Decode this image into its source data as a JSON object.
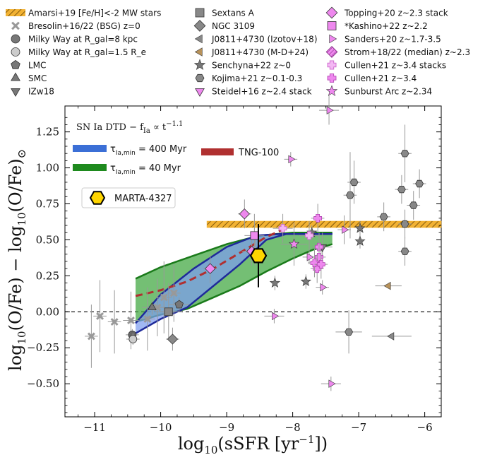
{
  "chart_data": {
    "type": "scatter",
    "xlabel": "log10(sSFR [yr^-1])",
    "ylabel": "log10(O/Fe) - log10(O/Fe)⊙",
    "xlim": [
      -11.45,
      -5.75
    ],
    "ylim": [
      -0.73,
      1.43
    ],
    "xticks": [
      -11,
      -10,
      -9,
      -8,
      -7,
      -6
    ],
    "yticks": [
      -0.5,
      -0.25,
      0.0,
      0.25,
      0.5,
      0.75,
      1.0,
      1.25
    ],
    "xtick_labels": [
      "−11",
      "−10",
      "−9",
      "−8",
      "−7",
      "−6"
    ],
    "ytick_labels": [
      "−0.50",
      "−0.25",
      "0.00",
      "0.25",
      "0.50",
      "0.75",
      "1.00",
      "1.25"
    ],
    "legend_placement": "above plot, three columns",
    "inset_title": "SN Ia DTD — f_Ia ∝ t^−1.1",
    "model_legend": [
      {
        "label": "τIa,min = 400 Myr",
        "color": "#3b6fd6"
      },
      {
        "label": "τIa,min = 40 Myr",
        "color": "#1e8a1e"
      },
      {
        "label": "TNG-100",
        "color": "#b03030"
      }
    ],
    "marta_label": "MARTA-4327",
    "legend": [
      {
        "label": "Amarsi+19 [Fe/H]<-2 MW stars",
        "marker": "hatch-band",
        "color": "#f2b233"
      },
      {
        "label": "Bresolin+16/22 (BSG) z=0",
        "marker": "x",
        "color": "#999999"
      },
      {
        "label": "Milky Way at R_gal=8 kpc",
        "marker": "circle",
        "color": "#777777"
      },
      {
        "label": "Milky Way at R_gal=1.5 R_e",
        "marker": "circle",
        "color": "#cccccc"
      },
      {
        "label": "LMC",
        "marker": "pentagon",
        "color": "#777777"
      },
      {
        "label": "SMC",
        "marker": "triangle-up",
        "color": "#777777"
      },
      {
        "label": "IZw18",
        "marker": "triangle-down",
        "color": "#777777"
      },
      {
        "label": "Sextans A",
        "marker": "square",
        "color": "#888888"
      },
      {
        "label": "NGC 3109",
        "marker": "diamond",
        "color": "#888888"
      },
      {
        "label": "J0811+4730 (Izotov+18)",
        "marker": "triangle-left",
        "color": "#888888"
      },
      {
        "label": "J0811+4730 (M-D+24)",
        "marker": "triangle-left",
        "color": "#b8925a"
      },
      {
        "label": "Senchyna+22 z~0",
        "marker": "star",
        "color": "#777777"
      },
      {
        "label": "Kojima+21 z~0.1-0.3",
        "marker": "hexagon",
        "color": "#888888"
      },
      {
        "label": "Steidel+16 z~2.4 stack",
        "marker": "triangle-down",
        "color": "#ee88ee"
      },
      {
        "label": "Topping+20 z~2.3 stack",
        "marker": "diamond",
        "color": "#ee88ee"
      },
      {
        "label": "*Kashino+22 z~2.2",
        "marker": "square",
        "color": "#ee88ee"
      },
      {
        "label": "Sanders+20 z~1.7-3.5",
        "marker": "triangle-right",
        "color": "#ee88ee"
      },
      {
        "label": "Strom+18/22 (median) z~2.3",
        "marker": "hatched-diamond",
        "color": "#ee88ee"
      },
      {
        "label": "Cullen+21 z~3.4 stacks",
        "marker": "plus-open",
        "color": "#f4b8f4"
      },
      {
        "label": "Cullen+21 z~3.4",
        "marker": "plus",
        "color": "#ee88ee"
      },
      {
        "label": "Sunburst Arc z~2.34",
        "marker": "star",
        "color": "#ee88ee"
      }
    ],
    "amarsi_band": {
      "x": [
        -9.3,
        -5.75
      ],
      "y": [
        0.585,
        0.63
      ]
    },
    "series": [
      {
        "name": "Bresolin+16/22 (BSG) z=0",
        "marker": "x",
        "color": "#999999",
        "points": [
          {
            "x": -11.05,
            "y": -0.17,
            "xerr": 0.1,
            "yerr": 0.22
          },
          {
            "x": -10.92,
            "y": -0.03,
            "xerr": 0.1,
            "yerr": 0.25
          },
          {
            "x": -10.7,
            "y": -0.07,
            "xerr": 0.1,
            "yerr": 0.22
          },
          {
            "x": -10.45,
            "y": -0.06,
            "xerr": 0.12,
            "yerr": 0.2
          },
          {
            "x": -10.2,
            "y": -0.05,
            "xerr": 0.12,
            "yerr": 0.22
          },
          {
            "x": -10.05,
            "y": 0.03,
            "xerr": 0.12,
            "yerr": 0.2
          },
          {
            "x": -9.95,
            "y": 0.1,
            "xerr": 0.12,
            "yerr": 0.25
          },
          {
            "x": -9.8,
            "y": 0.13,
            "xerr": 0.1,
            "yerr": 0.2
          }
        ]
      },
      {
        "name": "Milky Way at R_gal=8 kpc",
        "marker": "circle",
        "color": "#666666",
        "points": [
          {
            "x": -10.43,
            "y": -0.16,
            "xerr": 0.1,
            "yerr": 0.04
          }
        ]
      },
      {
        "name": "Milky Way at R_gal=1.5 R_e",
        "marker": "circle",
        "color": "#cccccc",
        "points": [
          {
            "x": -10.42,
            "y": -0.19,
            "xerr": 0.1,
            "yerr": 0.04
          }
        ]
      },
      {
        "name": "LMC",
        "marker": "pentagon",
        "color": "#777777",
        "points": [
          {
            "x": -9.72,
            "y": 0.05,
            "xerr": 0.15,
            "yerr": 0.05
          }
        ]
      },
      {
        "name": "SMC",
        "marker": "triangle-up",
        "color": "#777777",
        "points": [
          {
            "x": -10.13,
            "y": 0.03,
            "xerr": 0.15,
            "yerr": 0.05
          }
        ]
      },
      {
        "name": "IZw18",
        "marker": "triangle-down",
        "color": "#777777",
        "points": [
          {
            "x": -7.55,
            "y": 0.45,
            "xerr": 0.15,
            "yerr": 0.1
          }
        ]
      },
      {
        "name": "Sextans A",
        "marker": "square",
        "color": "#888888",
        "points": [
          {
            "x": -9.88,
            "y": 0.0,
            "xerr": 0.2,
            "yerr": 0.2
          }
        ]
      },
      {
        "name": "NGC 3109",
        "marker": "diamond",
        "color": "#888888",
        "points": [
          {
            "x": -9.82,
            "y": -0.19,
            "xerr": 0.1,
            "yerr": 0.08
          }
        ]
      },
      {
        "name": "J0811+4730 (Izotov+18)",
        "marker": "triangle-left",
        "color": "#888888",
        "points": [
          {
            "x": -6.5,
            "y": -0.17,
            "xerr": 0.3,
            "yerr": 0.0
          }
        ]
      },
      {
        "name": "J0811+4730 (M-D+24)",
        "marker": "triangle-left",
        "color": "#b8925a",
        "points": [
          {
            "x": -6.55,
            "y": 0.18,
            "xerr": 0.2,
            "yerr": 0.0
          }
        ]
      },
      {
        "name": "Senchyna+22 z~0",
        "marker": "star",
        "color": "#777777",
        "points": [
          {
            "x": -8.27,
            "y": 0.2,
            "xerr": 0.05,
            "yerr": 0.05
          },
          {
            "x": -7.8,
            "y": 0.21,
            "xerr": 0.05,
            "yerr": 0.05
          },
          {
            "x": -7.71,
            "y": 0.55,
            "xerr": 0.05,
            "yerr": 0.05
          },
          {
            "x": -6.98,
            "y": 0.58,
            "xerr": 0.05,
            "yerr": 0.05
          },
          {
            "x": -6.98,
            "y": 0.49,
            "xerr": 0.05,
            "yerr": 0.05
          }
        ]
      },
      {
        "name": "Kojima+21 z~0.1-0.3",
        "marker": "hexagon",
        "color": "#888888",
        "points": [
          {
            "x": -7.07,
            "y": 0.9,
            "xerr": 0.1,
            "yerr": 0.15
          },
          {
            "x": -7.13,
            "y": 0.81,
            "xerr": 0.1,
            "yerr": 0.3
          },
          {
            "x": -6.62,
            "y": 0.66,
            "xerr": 0.1,
            "yerr": 0.1
          },
          {
            "x": -6.3,
            "y": 1.1,
            "xerr": 0.1,
            "yerr": 0.2
          },
          {
            "x": -6.35,
            "y": 0.85,
            "xerr": 0.1,
            "yerr": 0.1
          },
          {
            "x": -6.08,
            "y": 0.89,
            "xerr": 0.1,
            "yerr": 0.1
          },
          {
            "x": -6.17,
            "y": 0.74,
            "xerr": 0.1,
            "yerr": 0.1
          },
          {
            "x": -6.3,
            "y": 0.61,
            "xerr": 0.1,
            "yerr": 0.1
          },
          {
            "x": -6.3,
            "y": 0.42,
            "xerr": 0.1,
            "yerr": 0.1
          },
          {
            "x": -7.15,
            "y": -0.14,
            "xerr": 0.2,
            "yerr": 0.15
          }
        ]
      },
      {
        "name": "Steidel+16 z~2.4 stack",
        "marker": "triangle-down",
        "color": "#ee88ee",
        "points": [
          {
            "x": -8.57,
            "y": 0.42,
            "xerr": 0.2,
            "yerr": 0.1
          }
        ]
      },
      {
        "name": "Topping+20 z~2.3 stack",
        "marker": "diamond",
        "color": "#ee88ee",
        "points": [
          {
            "x": -8.73,
            "y": 0.68,
            "xerr": 0.1,
            "yerr": 0.1
          },
          {
            "x": -8.62,
            "y": 0.42,
            "xerr": 0.1,
            "yerr": 0.1
          },
          {
            "x": -9.25,
            "y": 0.3,
            "xerr": 0.1,
            "yerr": 0.1
          }
        ]
      },
      {
        "name": "*Kashino+22 z~2.2",
        "marker": "square",
        "color": "#ee88ee",
        "points": [
          {
            "x": -8.58,
            "y": 0.53,
            "xerr": 0.15,
            "yerr": 0.15
          }
        ]
      },
      {
        "name": "Sanders+20 z~1.7-3.5",
        "marker": "triangle-right",
        "color": "#ee88ee",
        "points": [
          {
            "x": -7.45,
            "y": 1.4,
            "xerr": 0.15,
            "yerr": 0.1
          },
          {
            "x": -8.03,
            "y": 1.06,
            "xerr": 0.1,
            "yerr": 0.05
          },
          {
            "x": -7.22,
            "y": 0.57,
            "xerr": 0.1,
            "yerr": 0.1
          },
          {
            "x": -7.75,
            "y": 0.38,
            "xerr": 0.1,
            "yerr": 0.05
          },
          {
            "x": -7.55,
            "y": 0.17,
            "xerr": 0.1,
            "yerr": 0.05
          },
          {
            "x": -8.28,
            "y": -0.03,
            "xerr": 0.15,
            "yerr": 0.05
          },
          {
            "x": -7.42,
            "y": -0.5,
            "xerr": 0.15,
            "yerr": 0.05
          }
        ]
      },
      {
        "name": "Cullen+21 z~3.4 stacks",
        "marker": "plus-open",
        "color": "#f4b8f4",
        "points": [
          {
            "x": -8.15,
            "y": 0.58,
            "xerr": 0.15,
            "yerr": 0.1
          },
          {
            "x": -7.75,
            "y": 0.53,
            "xerr": 0.15,
            "yerr": 0.1
          }
        ]
      },
      {
        "name": "Cullen+21 z~3.4",
        "marker": "plus",
        "color": "#ee88ee",
        "points": [
          {
            "x": -7.62,
            "y": 0.65,
            "xerr": 0.1,
            "yerr": 0.1
          },
          {
            "x": -7.6,
            "y": 0.45,
            "xerr": 0.1,
            "yerr": 0.1
          },
          {
            "x": -7.6,
            "y": 0.38,
            "xerr": 0.1,
            "yerr": 0.1
          },
          {
            "x": -7.63,
            "y": 0.3,
            "xerr": 0.1,
            "yerr": 0.1
          },
          {
            "x": -7.67,
            "y": 0.34,
            "xerr": 0.1,
            "yerr": 0.1
          },
          {
            "x": -7.57,
            "y": 0.33,
            "xerr": 0.1,
            "yerr": 0.1
          }
        ]
      },
      {
        "name": "Sunburst Arc z~2.34",
        "marker": "star",
        "color": "#ee88ee",
        "points": [
          {
            "x": -7.98,
            "y": 0.47,
            "xerr": 0.2,
            "yerr": 0.15
          }
        ]
      },
      {
        "name": "MARTA-4327",
        "marker": "hexagon-big",
        "color": "#ffd500",
        "points": [
          {
            "x": -8.52,
            "y": 0.39,
            "xerr": 0.05,
            "yerr": 0.22
          }
        ]
      }
    ],
    "models": {
      "tau400": {
        "color": "#3b6fd6",
        "upper": [
          [
            -10.38,
            -0.08
          ],
          [
            -10.0,
            0.12
          ],
          [
            -9.5,
            0.3
          ],
          [
            -9.0,
            0.45
          ],
          [
            -8.55,
            0.53
          ],
          [
            -8.2,
            0.54
          ],
          [
            -7.4,
            0.54
          ]
        ],
        "lower": [
          [
            -10.38,
            -0.15
          ],
          [
            -10.0,
            -0.05
          ],
          [
            -9.6,
            0.03
          ],
          [
            -9.2,
            0.18
          ],
          [
            -8.8,
            0.33
          ],
          [
            -8.4,
            0.5
          ],
          [
            -8.1,
            0.54
          ],
          [
            -7.4,
            0.54
          ]
        ]
      },
      "tau40": {
        "color": "#1e8a1e",
        "upper": [
          [
            -10.38,
            0.23
          ],
          [
            -10.0,
            0.31
          ],
          [
            -9.5,
            0.39
          ],
          [
            -9.0,
            0.47
          ],
          [
            -8.5,
            0.53
          ],
          [
            -8.0,
            0.55
          ],
          [
            -7.4,
            0.55
          ]
        ],
        "lower": [
          [
            -10.38,
            -0.07
          ],
          [
            -10.0,
            -0.02
          ],
          [
            -9.6,
            0.02
          ],
          [
            -9.2,
            0.1
          ],
          [
            -8.8,
            0.18
          ],
          [
            -8.4,
            0.28
          ],
          [
            -8.0,
            0.37
          ],
          [
            -7.7,
            0.43
          ],
          [
            -7.4,
            0.47
          ]
        ]
      },
      "tng100": {
        "color": "#b03030",
        "line": [
          [
            -10.38,
            0.11
          ],
          [
            -10.0,
            0.15
          ],
          [
            -9.6,
            0.21
          ],
          [
            -9.2,
            0.3
          ],
          [
            -8.8,
            0.41
          ],
          [
            -8.4,
            0.52
          ],
          [
            -8.1,
            0.58
          ]
        ]
      }
    }
  }
}
